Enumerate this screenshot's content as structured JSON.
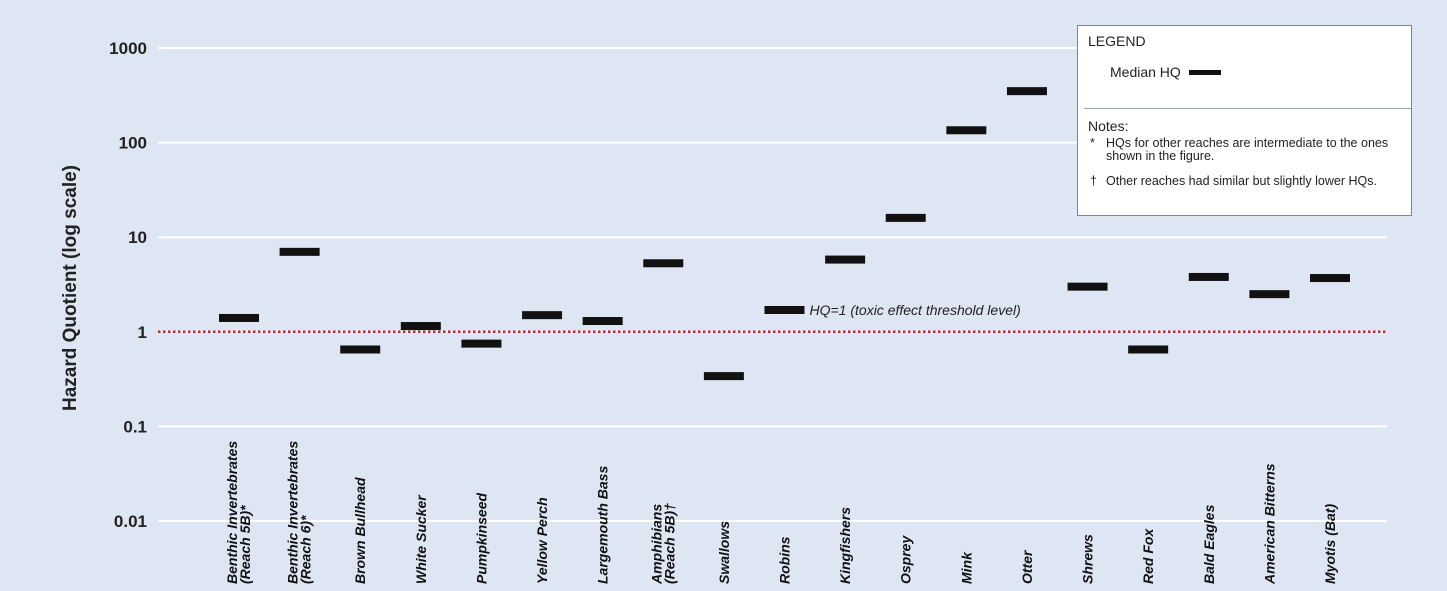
{
  "chart_data": {
    "type": "scatter",
    "ylabel": "Hazard Quotient (log scale)",
    "yscale": "log",
    "ylim": [
      0.01,
      1000
    ],
    "yticks": [
      {
        "value": 1000,
        "label": "1000"
      },
      {
        "value": 100,
        "label": "100"
      },
      {
        "value": 10,
        "label": "10"
      },
      {
        "value": 1,
        "label": "1"
      },
      {
        "value": 0.1,
        "label": "0.1"
      },
      {
        "value": 0.01,
        "label": "0.01"
      }
    ],
    "grid": true,
    "categories": [
      [
        "Benthic Invertebrates",
        "(Reach 5B)*"
      ],
      [
        "Benthic Invertebrates",
        "(Reach 6)*"
      ],
      [
        "Brown Bullhead"
      ],
      [
        "White Sucker"
      ],
      [
        "Pumpkinseed"
      ],
      [
        "Yellow Perch"
      ],
      [
        "Largemouth Bass"
      ],
      [
        "Amphibians",
        "(Reach 5B)†"
      ],
      [
        "Swallows"
      ],
      [
        "Robins"
      ],
      [
        "Kingfishers"
      ],
      [
        "Osprey"
      ],
      [
        "Mink"
      ],
      [
        "Otter"
      ],
      [
        "Shrews"
      ],
      [
        "Red Fox"
      ],
      [
        "Bald Eagles"
      ],
      [
        "American Bitterns"
      ],
      [
        "Myotis (Bat)"
      ]
    ],
    "series": [
      {
        "name": "Median HQ",
        "values": [
          1.4,
          7.0,
          0.65,
          1.15,
          0.75,
          1.5,
          1.3,
          5.3,
          0.34,
          1.7,
          5.8,
          16,
          135,
          350,
          3.0,
          0.65,
          3.8,
          2.5,
          3.7
        ]
      }
    ],
    "threshold": {
      "value": 1,
      "label": "HQ=1 (toxic effect threshold level)",
      "color": "#c0282d"
    },
    "legend": {
      "title": "LEGEND",
      "entry": "Median HQ",
      "notes_title": "Notes:",
      "notes": [
        {
          "symbol": "*",
          "text": "HQs for other reaches are intermediate to the ones shown in the figure."
        },
        {
          "symbol": "†",
          "text": "Other reaches had similar but slightly lower HQs."
        }
      ],
      "placement": "top-right"
    }
  },
  "colors": {
    "background": "#dde6f2",
    "marker": "#111111",
    "gridline": "#ffffff",
    "threshold": "#c0282d"
  }
}
